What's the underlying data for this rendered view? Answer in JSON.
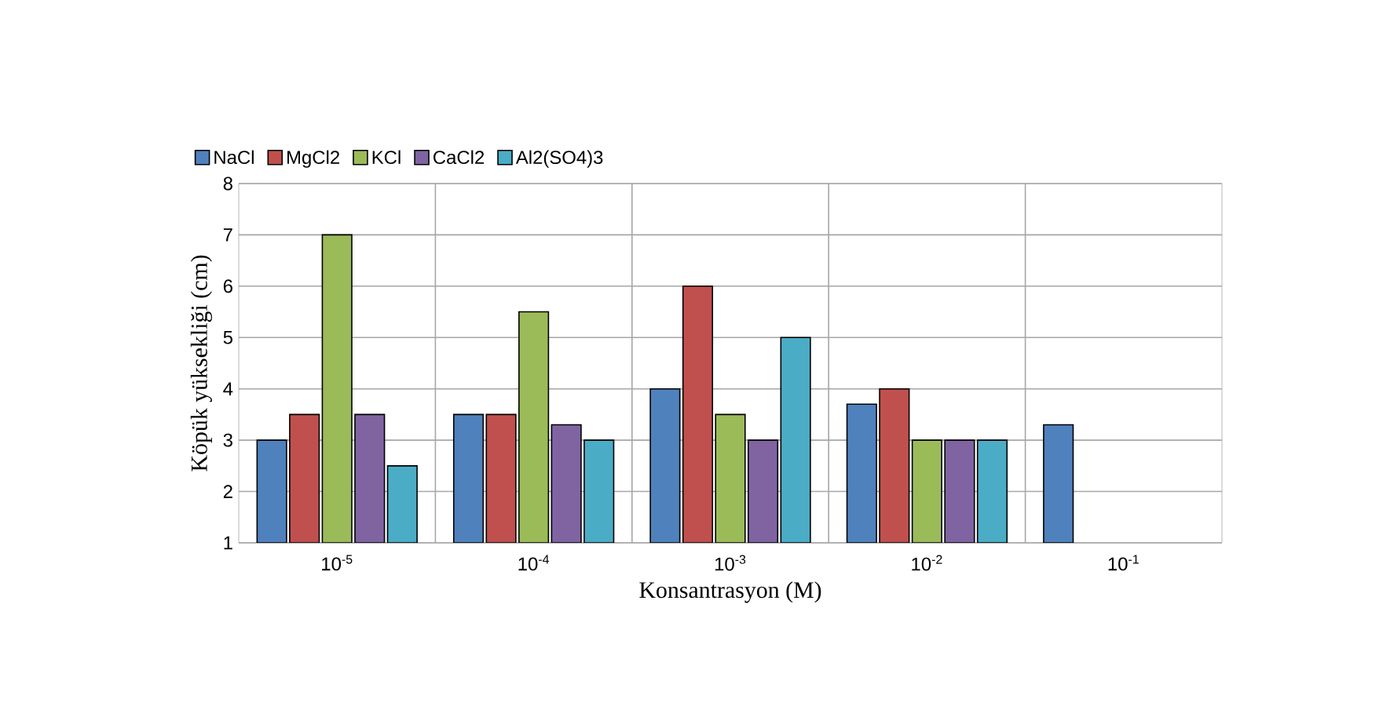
{
  "chart_data": {
    "type": "bar",
    "xlabel": "Konsantrasyon   (M)",
    "ylabel": "Köpük yüksekliği  (cm)",
    "categories": [
      "10$^{-5}$",
      "10$^{-4}$",
      "10$^{-3}$",
      "10$^{-2}$",
      "10$^{-1}$"
    ],
    "series": [
      {
        "name": "NaCl",
        "color": "#4f81bd",
        "values": [
          3,
          3.5,
          4,
          3.7,
          3.3
        ]
      },
      {
        "name": "MgCl2",
        "color": "#c0504d",
        "values": [
          3.5,
          3.5,
          6,
          4,
          null
        ]
      },
      {
        "name": "KCl",
        "color": "#9bbb59",
        "values": [
          7,
          5.5,
          3.5,
          3,
          null
        ]
      },
      {
        "name": "CaCl2",
        "color": "#8064a2",
        "values": [
          3.5,
          3.3,
          3,
          3,
          null
        ]
      },
      {
        "name": "Al2(SO4)3",
        "color": "#4bacc6",
        "values": [
          2.5,
          3,
          5,
          3,
          null
        ]
      }
    ],
    "ylim": [
      1,
      8
    ],
    "yticks": [
      1,
      2,
      3,
      4,
      5,
      6,
      7,
      8
    ],
    "grid": true,
    "legend": "top"
  }
}
